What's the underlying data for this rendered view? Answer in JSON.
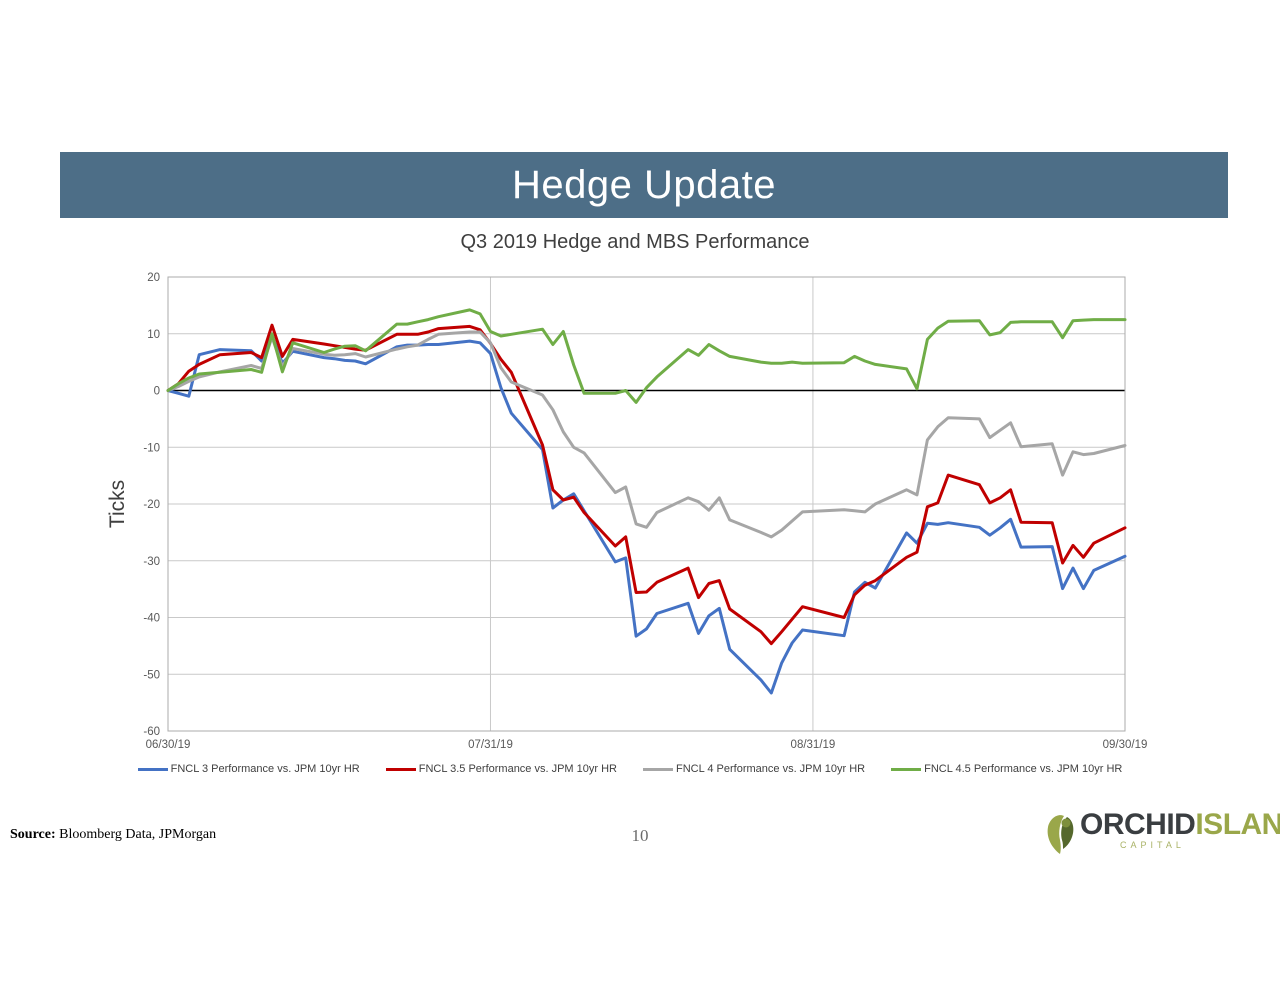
{
  "slide": {
    "banner_title": "Hedge Update",
    "page_number": "10",
    "source_label": "Source:",
    "source_text": " Bloomberg Data, JPMorgan"
  },
  "logo": {
    "word1": "ORCHID",
    "word2": "ISLAND",
    "word3": "CAPITAL",
    "leaf_icon": "calla-lily-leaf"
  },
  "colors": {
    "banner": "#4D6E87",
    "grid": "#C9C9C9",
    "plot_border": "#ABABAB",
    "zero_line": "#000000",
    "axis_text": "#595959",
    "title_text": "#3F3F3F"
  },
  "chart_data": {
    "type": "line",
    "title": "Q3 2019 Hedge and MBS Performance",
    "xlabel": "",
    "ylabel": "Ticks",
    "ylim": [
      -60,
      20
    ],
    "y_ticks": [
      20,
      10,
      0,
      -10,
      -20,
      -30,
      -40,
      -50,
      -60
    ],
    "x_tick_labels": [
      "06/30/19",
      "07/31/19",
      "08/31/19",
      "09/30/19"
    ],
    "x_gridline_dates": [
      "07/31",
      "08/31"
    ],
    "grid": true,
    "legend_position": "bottom",
    "x_dates": [
      "06/30",
      "07/01",
      "07/02",
      "07/03",
      "07/05",
      "07/08",
      "07/09",
      "07/10",
      "07/11",
      "07/12",
      "07/15",
      "07/16",
      "07/17",
      "07/18",
      "07/19",
      "07/22",
      "07/23",
      "07/24",
      "07/25",
      "07/26",
      "07/29",
      "07/30",
      "07/31",
      "08/01",
      "08/02",
      "08/05",
      "08/06",
      "08/07",
      "08/08",
      "08/09",
      "08/12",
      "08/13",
      "08/14",
      "08/15",
      "08/16",
      "08/19",
      "08/20",
      "08/21",
      "08/22",
      "08/23",
      "08/26",
      "08/27",
      "08/28",
      "08/29",
      "08/30",
      "09/03",
      "09/04",
      "09/05",
      "09/06",
      "09/09",
      "09/10",
      "09/11",
      "09/12",
      "09/13",
      "09/16",
      "09/17",
      "09/18",
      "09/19",
      "09/20",
      "09/23",
      "09/24",
      "09/25",
      "09/26",
      "09/27",
      "09/30"
    ],
    "series": [
      {
        "name": "FNCL 3 Performance vs. JPM 10yr HR",
        "color": "#4472C4",
        "values": [
          0,
          -0.5,
          -1,
          6.3,
          7.2,
          7.0,
          5.2,
          9.7,
          4.8,
          6.9,
          5.8,
          5.6,
          5.3,
          5.2,
          4.7,
          7.7,
          8.0,
          8.0,
          8.1,
          8.1,
          8.7,
          8.4,
          6.5,
          0.5,
          -4,
          -10.4,
          -20.7,
          -19.3,
          -18.2,
          -21.2,
          -30.2,
          -29.5,
          -43.3,
          -42.0,
          -39.3,
          -37.5,
          -42.8,
          -39.7,
          -38.4,
          -45.6,
          -51.0,
          -53.3,
          -48.0,
          -44.5,
          -42.2,
          -43.2,
          -35.5,
          -33.8,
          -34.8,
          -25.1,
          -26.9,
          -23.4,
          -23.6,
          -23.3,
          -24.1,
          -25.5,
          -24.2,
          -22.7,
          -27.6,
          -27.5,
          -34.9,
          -31.3,
          -34.9,
          -31.7,
          -29.2
        ]
      },
      {
        "name": "FNCL 3.5 Performance vs. JPM 10yr HR",
        "color": "#C00000",
        "values": [
          0,
          1.2,
          3.4,
          4.6,
          6.3,
          6.7,
          5.8,
          11.5,
          6.0,
          9.0,
          8.2,
          7.9,
          7.6,
          7.3,
          7.1,
          9.9,
          9.9,
          9.9,
          10.3,
          10.9,
          11.3,
          10.7,
          8.3,
          5.5,
          3.2,
          -9.6,
          -17.5,
          -19.3,
          -18.8,
          -21.5,
          -27.4,
          -25.8,
          -35.6,
          -35.5,
          -33.8,
          -31.3,
          -36.5,
          -34.0,
          -33.5,
          -38.5,
          -42.5,
          -44.6,
          -42.5,
          -40.3,
          -38.1,
          -40.0,
          -36.0,
          -34.3,
          -33.5,
          -29.4,
          -28.5,
          -20.5,
          -19.8,
          -14.9,
          -16.6,
          -19.8,
          -18.9,
          -17.5,
          -23.2,
          -23.3,
          -30.4,
          -27.3,
          -29.4,
          -26.9,
          -24.2
        ]
      },
      {
        "name": "FNCL 4 Performance vs. JPM 10yr HR",
        "color": "#A6A6A6",
        "values": [
          0,
          0.7,
          1.6,
          2.4,
          3.3,
          4.4,
          3.9,
          9.4,
          4.2,
          7.4,
          6.4,
          6.2,
          6.3,
          6.5,
          5.9,
          7.3,
          7.7,
          8.0,
          9.0,
          9.9,
          10.3,
          10.3,
          8.4,
          4.0,
          1.5,
          -0.8,
          -3.4,
          -7.3,
          -10.0,
          -11.0,
          -18.0,
          -17.0,
          -23.5,
          -24.1,
          -21.5,
          -18.9,
          -19.6,
          -21.1,
          -18.9,
          -22.8,
          -25.0,
          -25.8,
          -24.6,
          -23.0,
          -21.4,
          -21.0,
          -21.2,
          -21.4,
          -20.0,
          -17.5,
          -18.4,
          -8.7,
          -6.4,
          -4.8,
          -5.0,
          -8.3,
          -7.0,
          -5.7,
          -9.9,
          -9.4,
          -14.9,
          -10.8,
          -11.3,
          -11.1,
          -9.7
        ]
      },
      {
        "name": "FNCL 4.5 Performance vs. JPM 10yr HR",
        "color": "#70AD47",
        "values": [
          0,
          1.2,
          2.2,
          2.9,
          3.2,
          3.7,
          3.2,
          10.0,
          3.3,
          8.4,
          6.7,
          7.3,
          7.8,
          7.9,
          7.0,
          11.7,
          11.7,
          12.1,
          12.5,
          13.0,
          14.2,
          13.5,
          10.4,
          9.6,
          9.9,
          10.8,
          8.1,
          10.4,
          4.5,
          -0.5,
          -0.5,
          0.0,
          -2.1,
          0.5,
          2.4,
          7.2,
          6.2,
          8.1,
          7.0,
          6.0,
          5.0,
          4.8,
          4.8,
          5.0,
          4.8,
          4.9,
          6.0,
          5.2,
          4.6,
          3.8,
          0.3,
          9.0,
          11.0,
          12.2,
          12.3,
          9.8,
          10.2,
          12.0,
          12.1,
          12.1,
          9.3,
          12.3,
          12.4,
          12.5,
          12.5
        ]
      }
    ]
  }
}
